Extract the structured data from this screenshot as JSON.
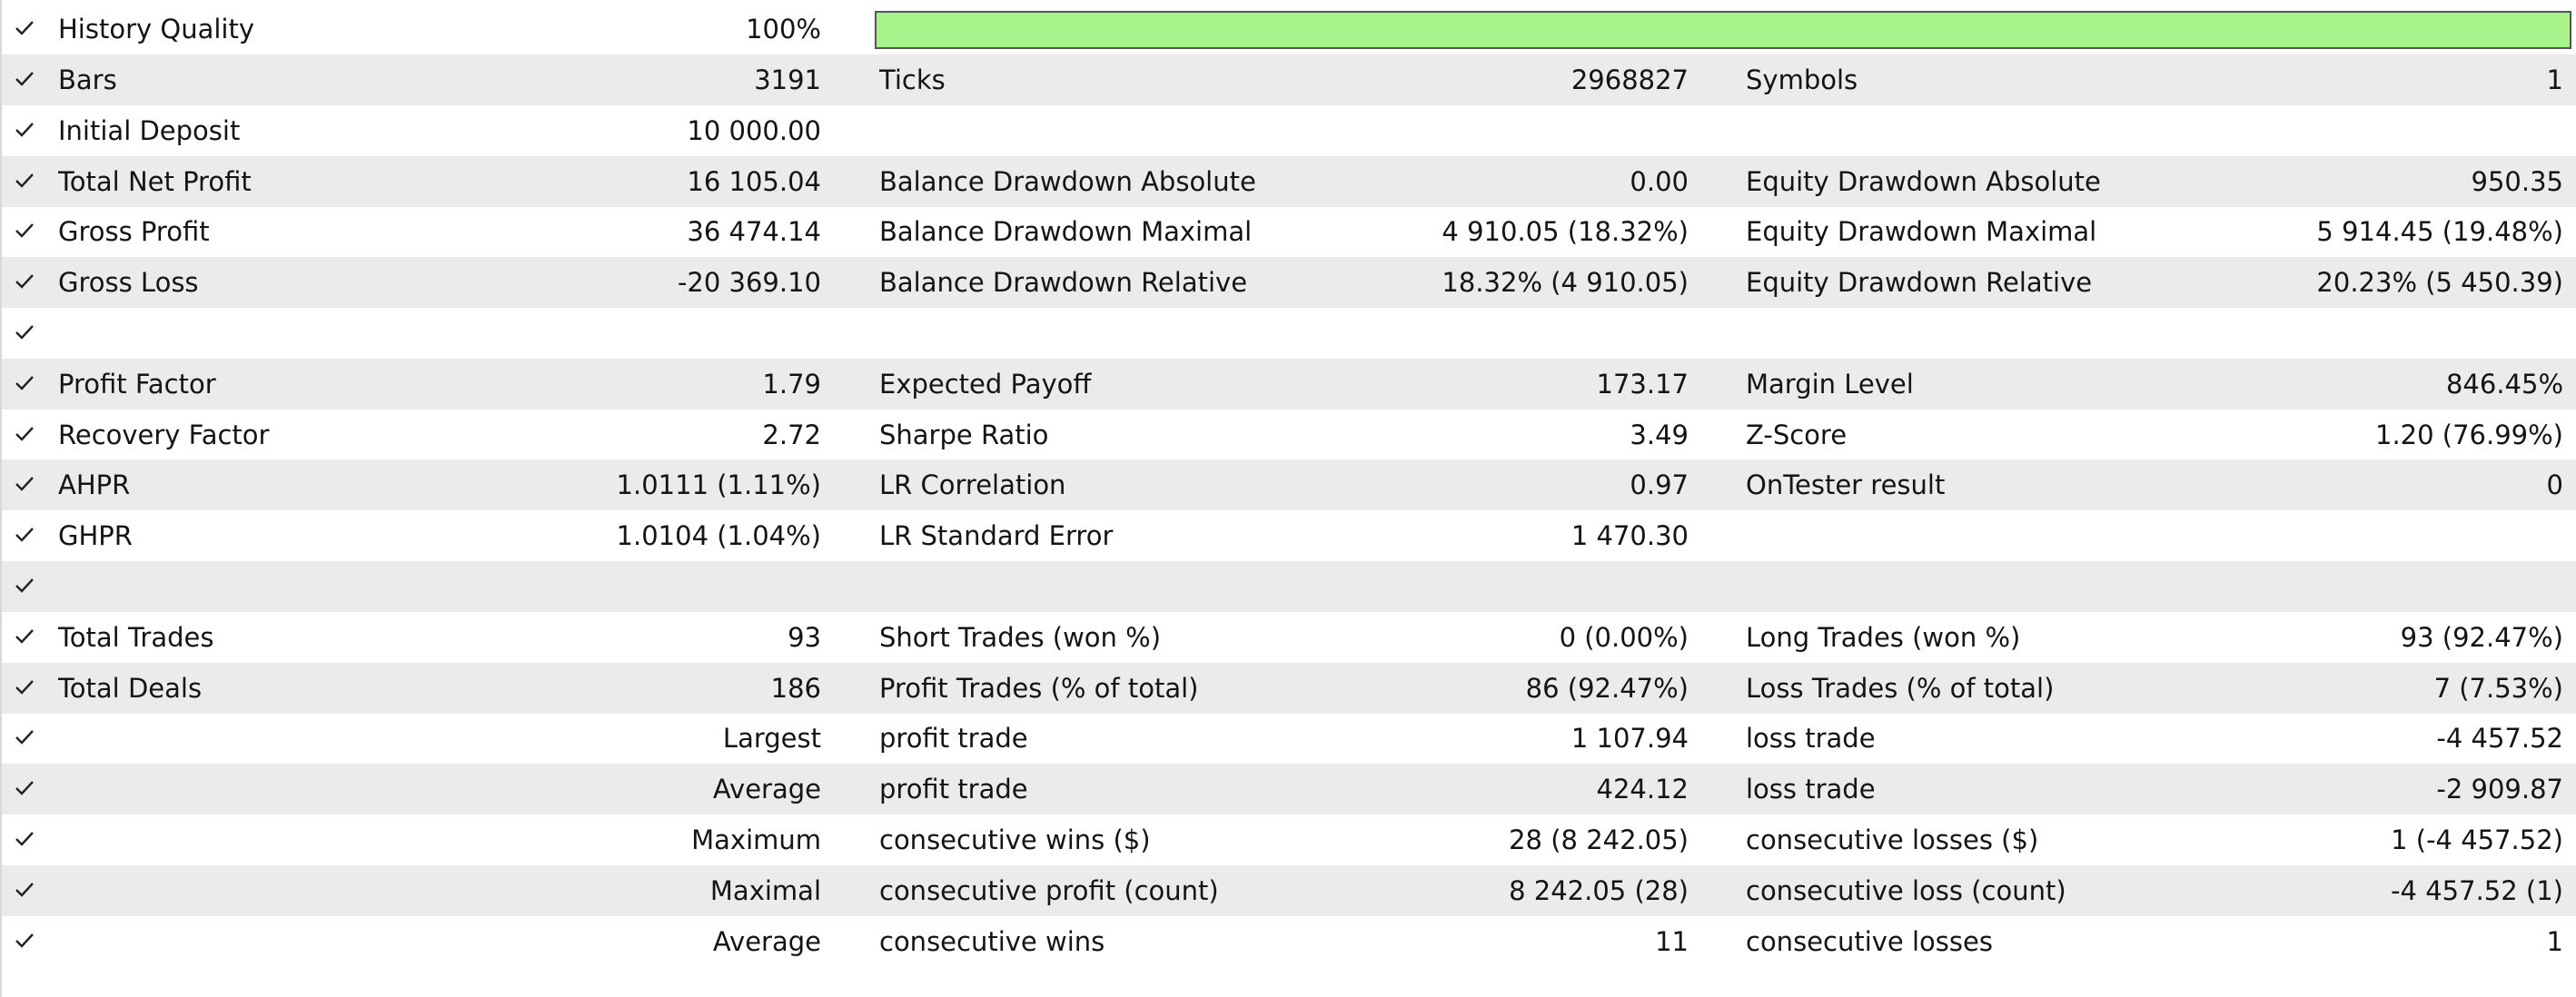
{
  "history_quality": {
    "label": "History Quality",
    "value": "100%",
    "fraction": 1.0,
    "bar_color": "#a8f48c"
  },
  "rows": [
    {
      "l1": "Bars",
      "v1": "3191",
      "l2": "Ticks",
      "v2": "2968827",
      "l3": "Symbols",
      "v3": "1"
    },
    {
      "l1": "Initial Deposit",
      "v1": "10 000.00",
      "l2": "",
      "v2": "",
      "l3": "",
      "v3": ""
    },
    {
      "l1": "Total Net Profit",
      "v1": "16 105.04",
      "l2": "Balance Drawdown Absolute",
      "v2": "0.00",
      "l3": "Equity Drawdown Absolute",
      "v3": "950.35"
    },
    {
      "l1": "Gross Profit",
      "v1": "36 474.14",
      "l2": "Balance Drawdown Maximal",
      "v2": "4 910.05 (18.32%)",
      "l3": "Equity Drawdown Maximal",
      "v3": "5 914.45 (19.48%)"
    },
    {
      "l1": "Gross Loss",
      "v1": "-20 369.10",
      "l2": "Balance Drawdown Relative",
      "v2": "18.32% (4 910.05)",
      "l3": "Equity Drawdown Relative",
      "v3": "20.23% (5 450.39)"
    },
    {
      "l1": "",
      "v1": "",
      "l2": "",
      "v2": "",
      "l3": "",
      "v3": ""
    },
    {
      "l1": "Profit Factor",
      "v1": "1.79",
      "l2": "Expected Payoff",
      "v2": "173.17",
      "l3": "Margin Level",
      "v3": "846.45%"
    },
    {
      "l1": "Recovery Factor",
      "v1": "2.72",
      "l2": "Sharpe Ratio",
      "v2": "3.49",
      "l3": "Z-Score",
      "v3": "1.20 (76.99%)"
    },
    {
      "l1": "AHPR",
      "v1": "1.0111 (1.11%)",
      "l2": "LR Correlation",
      "v2": "0.97",
      "l3": "OnTester result",
      "v3": "0"
    },
    {
      "l1": "GHPR",
      "v1": "1.0104 (1.04%)",
      "l2": "LR Standard Error",
      "v2": "1 470.30",
      "l3": "",
      "v3": ""
    },
    {
      "l1": "",
      "v1": "",
      "l2": "",
      "v2": "",
      "l3": "",
      "v3": ""
    },
    {
      "l1": "Total Trades",
      "v1": "93",
      "l2": "Short Trades (won %)",
      "v2": "0 (0.00%)",
      "l3": "Long Trades (won %)",
      "v3": "93 (92.47%)"
    },
    {
      "l1": "Total Deals",
      "v1": "186",
      "l2": "Profit Trades (% of total)",
      "v2": "86 (92.47%)",
      "l3": "Loss Trades (% of total)",
      "v3": "7 (7.53%)"
    },
    {
      "l1": "",
      "v1": "Largest",
      "l2": "profit trade",
      "v2": "1 107.94",
      "l3": "loss trade",
      "v3": "-4 457.52"
    },
    {
      "l1": "",
      "v1": "Average",
      "l2": "profit trade",
      "v2": "424.12",
      "l3": "loss trade",
      "v3": "-2 909.87"
    },
    {
      "l1": "",
      "v1": "Maximum",
      "l2": "consecutive wins ($)",
      "v2": "28 (8 242.05)",
      "l3": "consecutive losses ($)",
      "v3": "1 (-4 457.52)"
    },
    {
      "l1": "",
      "v1": "Maximal",
      "l2": "consecutive profit (count)",
      "v2": "8 242.05 (28)",
      "l3": "consecutive loss (count)",
      "v3": "-4 457.52 (1)"
    },
    {
      "l1": "",
      "v1": "Average",
      "l2": "consecutive wins",
      "v2": "11",
      "l3": "consecutive losses",
      "v3": "1"
    }
  ],
  "icons": {
    "row_check": "checkmark-icon"
  }
}
